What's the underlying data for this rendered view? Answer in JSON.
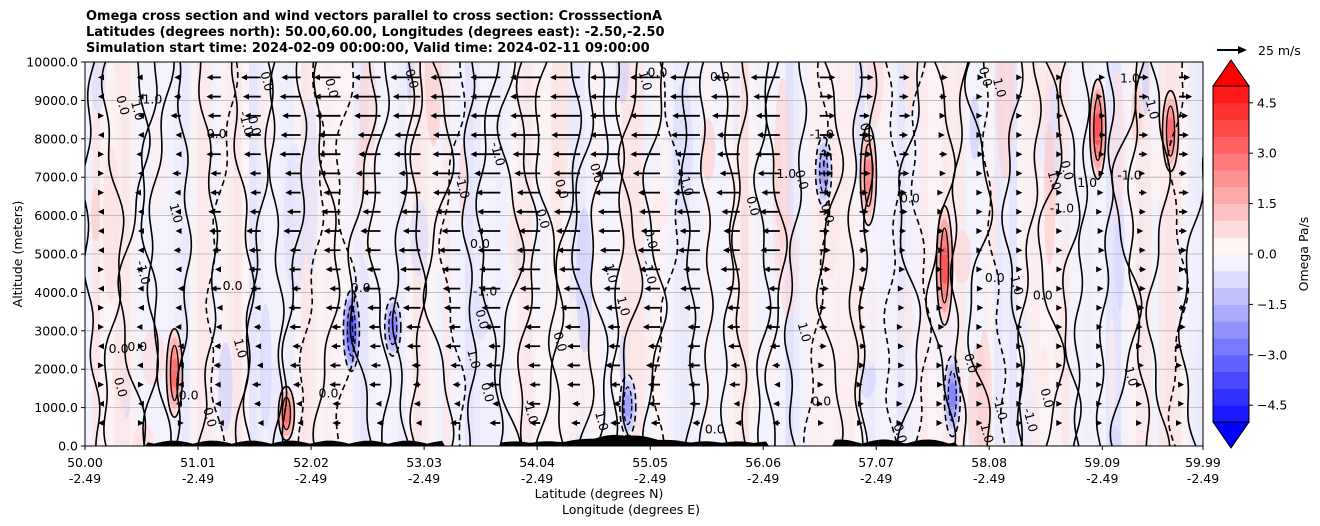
{
  "chart_data": {
    "type": "heatmap",
    "title_lines": [
      "Omega cross section and wind vectors parallel to cross section: CrosssectionA",
      "Latitudes (degrees north): 50.00,60.00, Longitudes (degrees east): -2.50,-2.50",
      "Simulation start time: 2024-02-09 00:00:00, Valid time: 2024-02-11 09:00:00"
    ],
    "ylabel": "Altitude (meters)",
    "xlabel_lat": "Latitude (degrees N)",
    "xlabel_lon": "Longitude (degrees E)",
    "ylim": [
      0,
      10000
    ],
    "xlim": [
      50.0,
      59.99
    ],
    "y_ticks": [
      {
        "value": 0,
        "label": "0.0"
      },
      {
        "value": 1000,
        "label": "1000.0"
      },
      {
        "value": 2000,
        "label": "2000.0"
      },
      {
        "value": 3000,
        "label": "3000.0"
      },
      {
        "value": 4000,
        "label": "4000.0"
      },
      {
        "value": 5000,
        "label": "5000.0"
      },
      {
        "value": 6000,
        "label": "6000.0"
      },
      {
        "value": 7000,
        "label": "7000.0"
      },
      {
        "value": 8000,
        "label": "8000.0"
      },
      {
        "value": 9000,
        "label": "9000.0"
      },
      {
        "value": 10000,
        "label": "10000.0"
      }
    ],
    "x_ticks": [
      {
        "value": 50.0,
        "lat": "50.00",
        "lon": "-2.49"
      },
      {
        "value": 51.01,
        "lat": "51.01",
        "lon": "-2.49"
      },
      {
        "value": 52.02,
        "lat": "52.02",
        "lon": "-2.49"
      },
      {
        "value": 53.03,
        "lat": "53.03",
        "lon": "-2.49"
      },
      {
        "value": 54.04,
        "lat": "54.04",
        "lon": "-2.49"
      },
      {
        "value": 55.05,
        "lat": "55.05",
        "lon": "-2.49"
      },
      {
        "value": 56.06,
        "lat": "56.06",
        "lon": "-2.49"
      },
      {
        "value": 57.07,
        "lat": "57.07",
        "lon": "-2.49"
      },
      {
        "value": 58.08,
        "lat": "58.08",
        "lon": "-2.49"
      },
      {
        "value": 59.09,
        "lat": "59.09",
        "lon": "-2.49"
      },
      {
        "value": 59.99,
        "lat": "59.99",
        "lon": "-2.49"
      }
    ],
    "colorbar": {
      "label": "Omega Pa/s",
      "range": [
        -5.0,
        5.0
      ],
      "ticks": [
        {
          "value": 4.5,
          "label": "4.5"
        },
        {
          "value": 3.0,
          "label": "3.0"
        },
        {
          "value": 1.5,
          "label": "1.5"
        },
        {
          "value": 0.0,
          "label": "0.0"
        },
        {
          "value": -1.5,
          "label": "−1.5"
        },
        {
          "value": -3.0,
          "label": "−3.0"
        },
        {
          "value": -4.5,
          "label": "−4.5"
        }
      ],
      "colors": {
        "positive": "#ff0000",
        "negative": "#0000ff",
        "zero": "#ffffff"
      }
    },
    "quiver_key": {
      "label": "25 m/s"
    },
    "contour_labels": [
      "0.0",
      "1.0",
      "-1.0"
    ],
    "strong_features": [
      {
        "lat": 50.8,
        "z": [
          800,
          3000
        ],
        "omega": 3.0
      },
      {
        "lat": 51.8,
        "z": [
          200,
          1500
        ],
        "omega": 3.0
      },
      {
        "lat": 52.38,
        "z": [
          2000,
          4000
        ],
        "omega": -3.5
      },
      {
        "lat": 52.75,
        "z": [
          2400,
          3800
        ],
        "omega": -2.5
      },
      {
        "lat": 57.0,
        "z": [
          5800,
          8300
        ],
        "omega": 2.5
      },
      {
        "lat": 57.68,
        "z": [
          3200,
          6200
        ],
        "omega": 3.5
      },
      {
        "lat": 57.75,
        "z": [
          300,
          2300
        ],
        "omega": -2.5
      },
      {
        "lat": 59.05,
        "z": [
          7000,
          9500
        ],
        "omega": 3.5
      },
      {
        "lat": 59.7,
        "z": [
          7200,
          9200
        ],
        "omega": 3.0
      },
      {
        "lat": 56.6,
        "z": [
          6300,
          8000
        ],
        "omega": -2.0
      },
      {
        "lat": 54.85,
        "z": [
          300,
          1800
        ],
        "omega": -2.0
      }
    ]
  }
}
